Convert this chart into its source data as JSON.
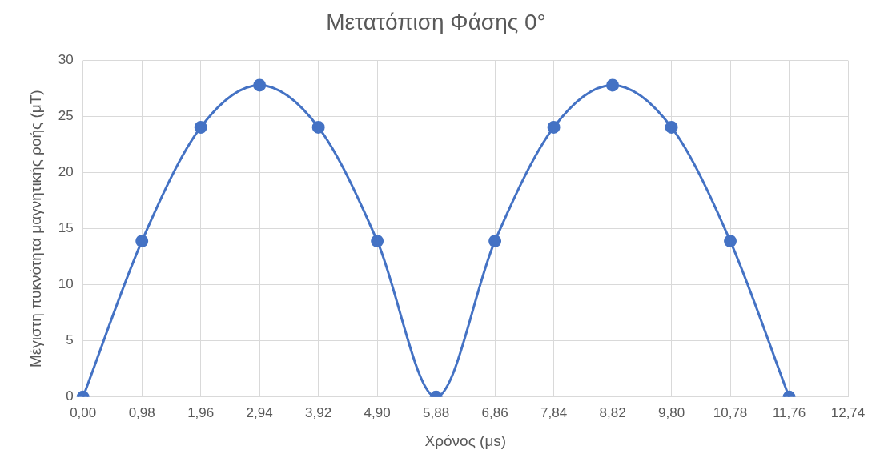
{
  "chart_data": {
    "type": "line",
    "title": "Μετατόπιση Φάσης 0°",
    "xlabel": "Χρόνος (μs)",
    "ylabel": "Μέγιστη πυκνότητα μαγνητικής ροής (μT)",
    "categories": [
      "0,00",
      "0,98",
      "1,96",
      "2,94",
      "3,92",
      "4,90",
      "5,88",
      "6,86",
      "7,84",
      "8,82",
      "9,80",
      "10,78",
      "11,76",
      "12,74"
    ],
    "series": [
      {
        "color": "#4472c4",
        "values": [
          0,
          13.9,
          24.05,
          27.8,
          24.05,
          13.9,
          0,
          13.9,
          24.05,
          27.8,
          24.05,
          13.9,
          0,
          null
        ]
      }
    ],
    "ylim": [
      0,
      30
    ],
    "yticks": [
      0,
      5,
      10,
      15,
      20,
      25,
      30
    ],
    "grid": true,
    "marker": "circle"
  }
}
